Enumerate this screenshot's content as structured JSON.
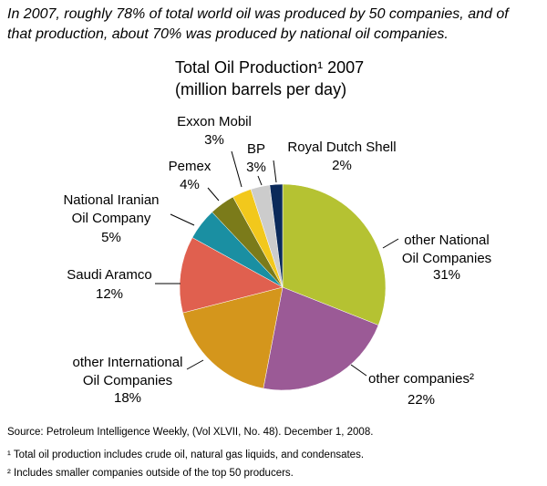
{
  "chart_data": {
    "type": "pie",
    "caption": [
      "In 2007, roughly 78% of total world oil was produced by 50 companies, and of",
      "that production, about 70% was produced by national oil companies."
    ],
    "title": "Total Oil Production¹ 2007",
    "subtitle": "(million barrels per day)",
    "categories": [
      "other National\nOil Companies",
      "other companies²",
      "other International\nOil Companies",
      "Saudi Aramco",
      "National Iranian\nOil Company",
      "Pemex",
      "Exxon Mobil",
      "BP",
      "Royal Dutch Shell"
    ],
    "values": [
      31,
      22,
      18,
      12,
      5,
      4,
      3,
      3,
      2
    ],
    "value_labels": [
      "31%",
      "22%",
      "18%",
      "12%",
      "5%",
      "4%",
      "3%",
      "3%",
      "2%"
    ],
    "colors": [
      "#b5c232",
      "#9b5a96",
      "#d4961c",
      "#e0604f",
      "#1a8fa2",
      "#7b7b1a",
      "#f2c81c",
      "#cccccc",
      "#0b2a5a"
    ],
    "source": "Source:  Petroleum Intelligence Weekly, (Vol XLVII, No. 48).  December 1, 2008.",
    "footnotes": [
      "¹ Total oil production includes crude oil, natural gas liquids, and condensates.",
      "² Includes smaller companies outside of the top 50 producers."
    ]
  }
}
